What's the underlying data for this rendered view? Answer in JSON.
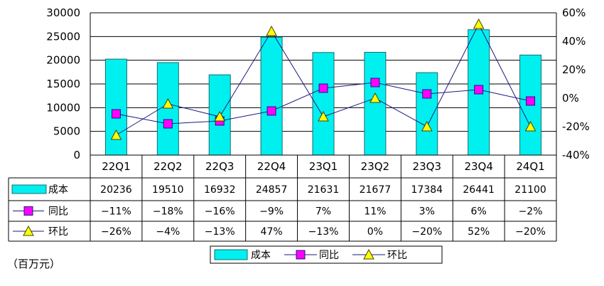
{
  "colors": {
    "bar_fill": "#00f0f0",
    "bar_stroke": "#1a6b6b",
    "yoy_line": "#1a1a80",
    "yoy_marker": "#ff00ff",
    "qoq_marker": "#ffff00",
    "grid": "#000000"
  },
  "chart_data": {
    "type": "bar",
    "categories": [
      "22Q1",
      "22Q2",
      "22Q3",
      "22Q4",
      "23Q1",
      "23Q2",
      "23Q3",
      "23Q4",
      "24Q1"
    ],
    "series": [
      {
        "name": "成本",
        "kind": "bar",
        "axis": "left",
        "values": [
          20236,
          19510,
          16932,
          24857,
          21631,
          21677,
          17384,
          26441,
          21100
        ],
        "labels": [
          "20236",
          "19510",
          "16932",
          "24857",
          "21631",
          "21677",
          "17384",
          "26441",
          "21100"
        ]
      },
      {
        "name": "同比",
        "kind": "line",
        "axis": "right",
        "marker": "square",
        "values": [
          -11,
          -18,
          -16,
          -9,
          7,
          11,
          3,
          6,
          -2
        ],
        "labels": [
          "−11%",
          "−18%",
          "−16%",
          "−9%",
          "7%",
          "11%",
          "3%",
          "6%",
          "−2%"
        ]
      },
      {
        "name": "环比",
        "kind": "line",
        "axis": "right",
        "marker": "triangle",
        "values": [
          -26,
          -4,
          -13,
          47,
          -13,
          0,
          -20,
          52,
          -20
        ],
        "labels": [
          "−26%",
          "−4%",
          "−13%",
          "47%",
          "−13%",
          "0%",
          "−20%",
          "52%",
          "−20%"
        ]
      }
    ],
    "y_left": {
      "lim": [
        0,
        30000
      ],
      "ticks": [
        "0",
        "5000",
        "10000",
        "15000",
        "20000",
        "25000",
        "30000"
      ]
    },
    "y_right": {
      "lim": [
        -40,
        60
      ],
      "ticks": [
        "-40%",
        "-20%",
        "0%",
        "20%",
        "40%",
        "60%"
      ]
    },
    "grid": true,
    "legend": "bottom-center",
    "data_table": true,
    "unit_note": "（百万元）"
  }
}
